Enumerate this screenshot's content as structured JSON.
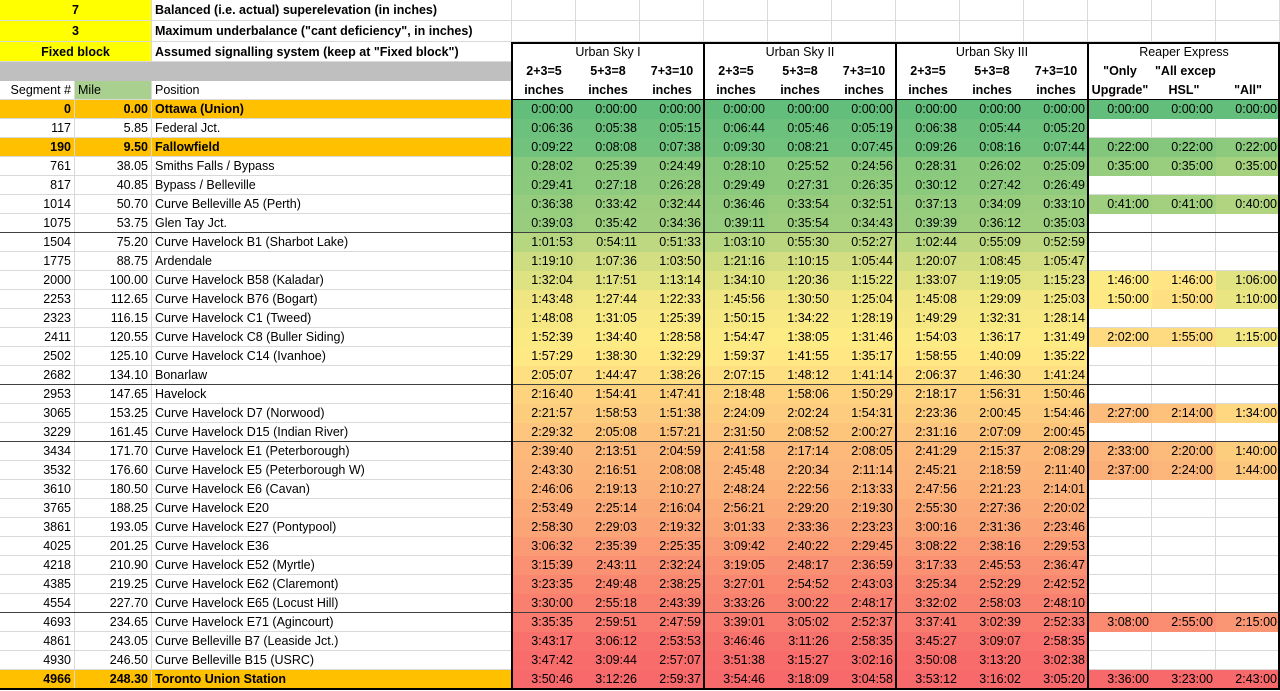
{
  "settings": [
    {
      "value": "7",
      "label": "Balanced (i.e. actual) superelevation (in inches)"
    },
    {
      "value": "3",
      "label": "Maximum underbalance (\"cant deficiency\", in inches)"
    },
    {
      "value": "Fixed block",
      "label": "Assumed signalling system (keep at \"Fixed block\")"
    }
  ],
  "columns": [
    "Segment #",
    "Mile",
    "Position"
  ],
  "groups": [
    {
      "name": "Urban Sky I",
      "subheaders": [
        "2+3=5",
        "5+3=8",
        "7+3=10"
      ],
      "units": [
        "inches",
        "inches",
        "inches"
      ]
    },
    {
      "name": "Urban Sky II",
      "subheaders": [
        "2+3=5",
        "5+3=8",
        "7+3=10"
      ],
      "units": [
        "inches",
        "inches",
        "inches"
      ]
    },
    {
      "name": "Urban Sky III",
      "subheaders": [
        "2+3=5",
        "5+3=8",
        "7+3=10"
      ],
      "units": [
        "inches",
        "inches",
        "inches"
      ]
    },
    {
      "name": "Reaper Express",
      "subheaders": [
        "\"Only",
        "\"All except",
        null
      ],
      "units": [
        "Upgrade\"",
        "HSL\"",
        "\"All\""
      ]
    }
  ],
  "color_scale": [
    "#63be7b",
    "#ffeb84",
    "#f8696b"
  ],
  "highlight_color": "#ffc000",
  "rows": [
    {
      "segment": "0",
      "mile": "0.00",
      "position": "Ottawa (Union)",
      "highlight": true,
      "times": [
        "0:00:00",
        "0:00:00",
        "0:00:00",
        "0:00:00",
        "0:00:00",
        "0:00:00",
        "0:00:00",
        "0:00:00",
        "0:00:00"
      ],
      "reaper": [
        "0:00:00",
        "0:00:00",
        "0:00:00"
      ]
    },
    {
      "segment": "117",
      "mile": "5.85",
      "position": "Federal Jct.",
      "times": [
        "0:06:36",
        "0:05:38",
        "0:05:15",
        "0:06:44",
        "0:05:46",
        "0:05:19",
        "0:06:38",
        "0:05:44",
        "0:05:20"
      ]
    },
    {
      "segment": "190",
      "mile": "9.50",
      "position": "Fallowfield",
      "highlight": true,
      "times": [
        "0:09:22",
        "0:08:08",
        "0:07:38",
        "0:09:30",
        "0:08:21",
        "0:07:45",
        "0:09:26",
        "0:08:16",
        "0:07:44"
      ],
      "reaper": [
        "0:22:00",
        "0:22:00",
        "0:22:00"
      ]
    },
    {
      "segment": "761",
      "mile": "38.05",
      "position": "Smiths Falls / Bypass",
      "times": [
        "0:28:02",
        "0:25:39",
        "0:24:49",
        "0:28:10",
        "0:25:52",
        "0:24:56",
        "0:28:31",
        "0:26:02",
        "0:25:09"
      ],
      "reaper": [
        "0:35:00",
        "0:35:00",
        "0:35:00"
      ]
    },
    {
      "segment": "817",
      "mile": "40.85",
      "position": "Bypass / Belleville",
      "times": [
        "0:29:41",
        "0:27:18",
        "0:26:28",
        "0:29:49",
        "0:27:31",
        "0:26:35",
        "0:30:12",
        "0:27:42",
        "0:26:49"
      ]
    },
    {
      "segment": "1014",
      "mile": "50.70",
      "position": "Curve Belleville A5 (Perth)",
      "times": [
        "0:36:38",
        "0:33:42",
        "0:32:44",
        "0:36:46",
        "0:33:54",
        "0:32:51",
        "0:37:13",
        "0:34:09",
        "0:33:10"
      ],
      "reaper": [
        "0:41:00",
        "0:41:00",
        "0:40:00"
      ]
    },
    {
      "segment": "1075",
      "mile": "53.75",
      "position": "Glen Tay Jct.",
      "rule_below": true,
      "times": [
        "0:39:03",
        "0:35:42",
        "0:34:36",
        "0:39:11",
        "0:35:54",
        "0:34:43",
        "0:39:39",
        "0:36:12",
        "0:35:03"
      ]
    },
    {
      "segment": "1504",
      "mile": "75.20",
      "position": "Curve Havelock B1 (Sharbot Lake)",
      "times": [
        "1:01:53",
        "0:54:11",
        "0:51:33",
        "1:03:10",
        "0:55:30",
        "0:52:27",
        "1:02:44",
        "0:55:09",
        "0:52:59"
      ]
    },
    {
      "segment": "1775",
      "mile": "88.75",
      "position": "Ardendale",
      "times": [
        "1:19:10",
        "1:07:36",
        "1:03:50",
        "1:21:16",
        "1:10:15",
        "1:05:44",
        "1:20:07",
        "1:08:45",
        "1:05:47"
      ]
    },
    {
      "segment": "2000",
      "mile": "100.00",
      "position": "Curve Havelock B58 (Kaladar)",
      "times": [
        "1:32:04",
        "1:17:51",
        "1:13:14",
        "1:34:10",
        "1:20:36",
        "1:15:22",
        "1:33:07",
        "1:19:05",
        "1:15:23"
      ],
      "reaper": [
        "1:46:00",
        "1:46:00",
        "1:06:00"
      ]
    },
    {
      "segment": "2253",
      "mile": "112.65",
      "position": "Curve Havelock B76 (Bogart)",
      "times": [
        "1:43:48",
        "1:27:44",
        "1:22:33",
        "1:45:56",
        "1:30:50",
        "1:25:04",
        "1:45:08",
        "1:29:09",
        "1:25:03"
      ],
      "reaper": [
        "1:50:00",
        "1:50:00",
        "1:10:00"
      ]
    },
    {
      "segment": "2323",
      "mile": "116.15",
      "position": "Curve Havelock C1 (Tweed)",
      "times": [
        "1:48:08",
        "1:31:05",
        "1:25:39",
        "1:50:15",
        "1:34:22",
        "1:28:19",
        "1:49:29",
        "1:32:31",
        "1:28:14"
      ]
    },
    {
      "segment": "2411",
      "mile": "120.55",
      "position": "Curve Havelock C8 (Buller Siding)",
      "times": [
        "1:52:39",
        "1:34:40",
        "1:28:58",
        "1:54:47",
        "1:38:05",
        "1:31:46",
        "1:54:03",
        "1:36:17",
        "1:31:49"
      ],
      "reaper": [
        "2:02:00",
        "1:55:00",
        "1:15:00"
      ]
    },
    {
      "segment": "2502",
      "mile": "125.10",
      "position": "Curve Havelock C14 (Ivanhoe)",
      "times": [
        "1:57:29",
        "1:38:30",
        "1:32:29",
        "1:59:37",
        "1:41:55",
        "1:35:17",
        "1:58:55",
        "1:40:09",
        "1:35:22"
      ]
    },
    {
      "segment": "2682",
      "mile": "134.10",
      "position": "Bonarlaw",
      "rule_below": true,
      "times": [
        "2:05:07",
        "1:44:47",
        "1:38:26",
        "2:07:15",
        "1:48:12",
        "1:41:14",
        "2:06:37",
        "1:46:30",
        "1:41:24"
      ]
    },
    {
      "segment": "2953",
      "mile": "147.65",
      "position": "Havelock",
      "times": [
        "2:16:40",
        "1:54:41",
        "1:47:41",
        "2:18:48",
        "1:58:06",
        "1:50:29",
        "2:18:17",
        "1:56:31",
        "1:50:46"
      ]
    },
    {
      "segment": "3065",
      "mile": "153.25",
      "position": "Curve Havelock D7 (Norwood)",
      "times": [
        "2:21:57",
        "1:58:53",
        "1:51:38",
        "2:24:09",
        "2:02:24",
        "1:54:31",
        "2:23:36",
        "2:00:45",
        "1:54:46"
      ],
      "reaper": [
        "2:27:00",
        "2:14:00",
        "1:34:00"
      ]
    },
    {
      "segment": "3229",
      "mile": "161.45",
      "position": "Curve Havelock D15 (Indian River)",
      "rule_below": true,
      "times": [
        "2:29:32",
        "2:05:08",
        "1:57:21",
        "2:31:50",
        "2:08:52",
        "2:00:27",
        "2:31:16",
        "2:07:09",
        "2:00:45"
      ]
    },
    {
      "segment": "3434",
      "mile": "171.70",
      "position": "Curve Havelock E1 (Peterborough)",
      "times": [
        "2:39:40",
        "2:13:51",
        "2:04:59",
        "2:41:58",
        "2:17:14",
        "2:08:05",
        "2:41:29",
        "2:15:37",
        "2:08:29"
      ],
      "reaper": [
        "2:33:00",
        "2:20:00",
        "1:40:00"
      ]
    },
    {
      "segment": "3532",
      "mile": "176.60",
      "position": "Curve Havelock E5 (Peterborough W)",
      "times": [
        "2:43:30",
        "2:16:51",
        "2:08:08",
        "2:45:48",
        "2:20:34",
        "2:11:14",
        "2:45:21",
        "2:18:59",
        "2:11:40"
      ],
      "reaper": [
        "2:37:00",
        "2:24:00",
        "1:44:00"
      ]
    },
    {
      "segment": "3610",
      "mile": "180.50",
      "position": "Curve Havelock E6 (Cavan)",
      "times": [
        "2:46:06",
        "2:19:13",
        "2:10:27",
        "2:48:24",
        "2:22:56",
        "2:13:33",
        "2:47:56",
        "2:21:23",
        "2:14:01"
      ]
    },
    {
      "segment": "3765",
      "mile": "188.25",
      "position": "Curve Havelock E20",
      "times": [
        "2:53:49",
        "2:25:14",
        "2:16:04",
        "2:56:21",
        "2:29:20",
        "2:19:30",
        "2:55:30",
        "2:27:36",
        "2:20:02"
      ]
    },
    {
      "segment": "3861",
      "mile": "193.05",
      "position": "Curve Havelock E27 (Pontypool)",
      "times": [
        "2:58:30",
        "2:29:03",
        "2:19:32",
        "3:01:33",
        "2:33:36",
        "2:23:23",
        "3:00:16",
        "2:31:36",
        "2:23:46"
      ]
    },
    {
      "segment": "4025",
      "mile": "201.25",
      "position": "Curve Havelock E36",
      "times": [
        "3:06:32",
        "2:35:39",
        "2:25:35",
        "3:09:42",
        "2:40:22",
        "2:29:45",
        "3:08:22",
        "2:38:16",
        "2:29:53"
      ]
    },
    {
      "segment": "4218",
      "mile": "210.90",
      "position": "Curve Havelock E52 (Myrtle)",
      "times": [
        "3:15:39",
        "2:43:11",
        "2:32:24",
        "3:19:05",
        "2:48:17",
        "2:36:59",
        "3:17:33",
        "2:45:53",
        "2:36:47"
      ]
    },
    {
      "segment": "4385",
      "mile": "219.25",
      "position": "Curve Havelock E62 (Claremont)",
      "times": [
        "3:23:35",
        "2:49:48",
        "2:38:25",
        "3:27:01",
        "2:54:52",
        "2:43:03",
        "3:25:34",
        "2:52:29",
        "2:42:52"
      ]
    },
    {
      "segment": "4554",
      "mile": "227.70",
      "position": "Curve Havelock E65 (Locust Hill)",
      "rule_below": true,
      "times": [
        "3:30:00",
        "2:55:18",
        "2:43:39",
        "3:33:26",
        "3:00:22",
        "2:48:17",
        "3:32:02",
        "2:58:03",
        "2:48:10"
      ]
    },
    {
      "segment": "4693",
      "mile": "234.65",
      "position": "Curve Havelock E71 (Agincourt)",
      "times": [
        "3:35:35",
        "2:59:51",
        "2:47:59",
        "3:39:01",
        "3:05:02",
        "2:52:37",
        "3:37:41",
        "3:02:39",
        "2:52:33"
      ],
      "reaper": [
        "3:08:00",
        "2:55:00",
        "2:15:00"
      ]
    },
    {
      "segment": "4861",
      "mile": "243.05",
      "position": "Curve Belleville B7 (Leaside Jct.)",
      "times": [
        "3:43:17",
        "3:06:12",
        "2:53:53",
        "3:46:46",
        "3:11:26",
        "2:58:35",
        "3:45:27",
        "3:09:07",
        "2:58:35"
      ]
    },
    {
      "segment": "4930",
      "mile": "246.50",
      "position": "Curve Belleville B15 (USRC)",
      "times": [
        "3:47:42",
        "3:09:44",
        "2:57:07",
        "3:51:38",
        "3:15:27",
        "3:02:16",
        "3:50:08",
        "3:13:20",
        "3:02:38"
      ]
    },
    {
      "segment": "4966",
      "mile": "248.30",
      "position": "Toronto Union Station",
      "highlight": true,
      "times": [
        "3:50:46",
        "3:12:26",
        "2:59:37",
        "3:54:46",
        "3:18:09",
        "3:04:58",
        "3:53:12",
        "3:16:02",
        "3:05:20"
      ],
      "reaper": [
        "3:36:00",
        "3:23:00",
        "2:43:00"
      ]
    }
  ]
}
